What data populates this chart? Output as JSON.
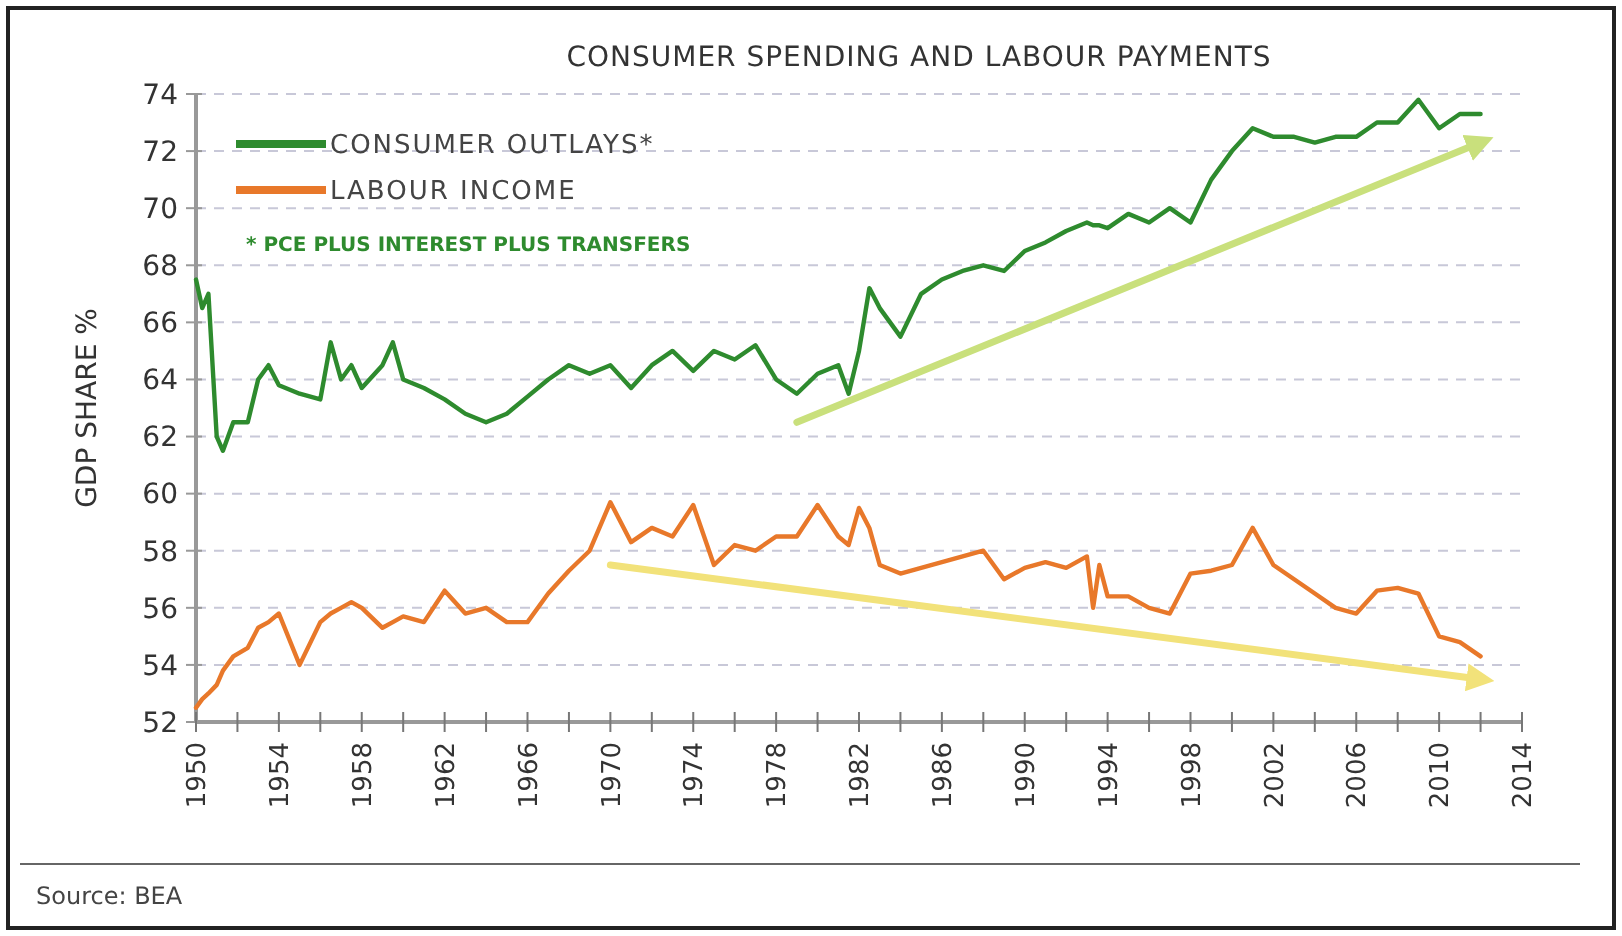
{
  "chart_data": {
    "type": "line",
    "title": "CONSUMER SPENDING AND LABOUR PAYMENTS",
    "ylabel": "GDP SHARE %",
    "x": [
      1950,
      1950.3,
      1950.6,
      1951,
      1951.3,
      1951.8,
      1952.5,
      1953,
      1953.5,
      1954,
      1955,
      1956,
      1956.5,
      1957,
      1957.5,
      1958,
      1959,
      1959.5,
      1960,
      1961,
      1962,
      1963,
      1964,
      1965,
      1966,
      1967,
      1968,
      1969,
      1970,
      1971,
      1972,
      1973,
      1974,
      1975,
      1976,
      1977,
      1978,
      1979,
      1980,
      1981,
      1981.5,
      1982,
      1982.5,
      1983,
      1984,
      1985,
      1986,
      1987,
      1988,
      1989,
      1990,
      1991,
      1992,
      1993,
      1993.3,
      1993.6,
      1994,
      1995,
      1996,
      1997,
      1998,
      1999,
      2000,
      2001,
      2002,
      2003,
      2004,
      2005,
      2006,
      2007,
      2008,
      2009,
      2010,
      2011,
      2012
    ],
    "series": [
      {
        "name": "CONSUMER OUTLAYS*",
        "color": "#2e8b2e",
        "values": [
          67.5,
          66.5,
          67,
          62,
          61.5,
          62.5,
          62.5,
          64,
          64.5,
          63.8,
          63.5,
          63.3,
          65.3,
          64,
          64.5,
          63.7,
          64.5,
          65.3,
          64,
          63.7,
          63.3,
          62.8,
          62.5,
          62.8,
          63.4,
          64,
          64.5,
          64.2,
          64.5,
          63.7,
          64.5,
          65,
          64.3,
          65,
          64.7,
          65.2,
          64,
          63.5,
          64.2,
          64.5,
          63.5,
          65,
          67.2,
          66.5,
          65.5,
          67,
          67.5,
          67.8,
          68,
          67.8,
          68.5,
          68.8,
          69.2,
          69.5,
          69.4,
          69.4,
          69.3,
          69.8,
          69.5,
          70,
          69.5,
          71,
          72,
          72.8,
          72.5,
          72.5,
          72.3,
          72.5,
          72.5,
          73,
          73,
          73.8,
          72.8,
          73.3,
          73.3
        ]
      },
      {
        "name": "LABOUR INCOME",
        "color": "#e8782a",
        "values": [
          52.5,
          52.8,
          53,
          53.3,
          53.8,
          54.3,
          54.6,
          55.3,
          55.5,
          55.8,
          54,
          55.5,
          55.8,
          56,
          56.2,
          56,
          55.3,
          55.5,
          55.7,
          55.5,
          56.6,
          55.8,
          56,
          55.5,
          55.5,
          56.5,
          57.3,
          58,
          59.7,
          58.3,
          58.8,
          58.5,
          59.6,
          57.5,
          58.2,
          58,
          58.5,
          58.5,
          59.6,
          58.5,
          58.2,
          59.5,
          58.8,
          57.5,
          57.2,
          57.4,
          57.6,
          57.8,
          58,
          57,
          57.4,
          57.6,
          57.4,
          57.8,
          56,
          57.5,
          56.4,
          56.4,
          56,
          55.8,
          57.2,
          57.3,
          57.5,
          58.8,
          57.5,
          57,
          56.5,
          56,
          55.8,
          56.6,
          56.7,
          56.5,
          55,
          54.8,
          54.3
        ]
      },
      {
        "type": "line",
        "color": "#c9e07c",
        "x": [
          1979,
          2012
        ],
        "values": [
          62.5,
          72.3
        ]
      },
      {
        "type": "line",
        "color": "#f2e27a",
        "x": [
          1970,
          2012
        ],
        "values": [
          57.5,
          53.5
        ]
      }
    ],
    "xlim": [
      1950,
      2014
    ],
    "ylim": [
      52,
      74
    ],
    "xticks": [
      1950,
      {
        "value": 1952,
        "label": null
      },
      1954,
      {
        "value": 1956,
        "label": null
      },
      1958,
      {
        "value": 1960,
        "label": null
      },
      1962,
      {
        "value": 1964,
        "label": null
      },
      1966,
      {
        "value": 1968,
        "label": null
      },
      1970,
      {
        "value": 1972,
        "label": null
      },
      1974,
      {
        "value": 1976,
        "label": null
      },
      1978,
      {
        "value": 1980,
        "label": null
      },
      1982,
      {
        "value": 1984,
        "label": null
      },
      1986,
      {
        "value": 1988,
        "label": null
      },
      1990,
      {
        "value": 1992,
        "label": null
      },
      1994,
      {
        "value": 1996,
        "label": null
      },
      1998,
      {
        "value": 2000,
        "label": null
      },
      2002,
      {
        "value": 2004,
        "label": null
      },
      2006,
      {
        "value": 2008,
        "label": null
      },
      2010,
      {
        "value": 2012,
        "label": null
      },
      2014
    ],
    "yticks": [
      52,
      54,
      56,
      58,
      60,
      62,
      64,
      66,
      68,
      70,
      72,
      74
    ],
    "grid": "y",
    "legend": "top left",
    "annotations": [
      "* PCE PLUS INTEREST PLUS TRANSFERS",
      "Source: BEA"
    ]
  }
}
